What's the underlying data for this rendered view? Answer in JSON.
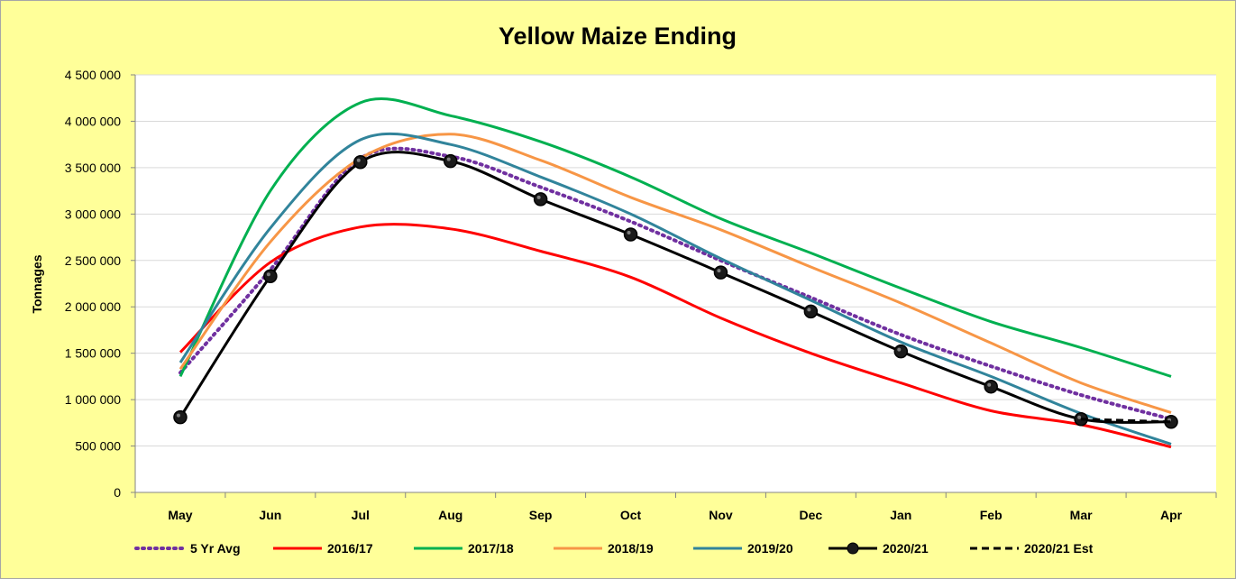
{
  "chart_data": {
    "type": "line",
    "title": "Yellow Maize Ending",
    "xlabel": "",
    "ylabel": "Tonnages",
    "ylim": [
      0,
      4500000
    ],
    "yticks": [
      0,
      500000,
      1000000,
      1500000,
      2000000,
      2500000,
      3000000,
      3500000,
      4000000,
      4500000
    ],
    "ytick_labels": [
      "0",
      "500 000",
      "1 000 000",
      "1 500 000",
      "2 000 000",
      "2 500 000",
      "3 000 000",
      "3 500 000",
      "4 000 000",
      "4 500 000"
    ],
    "categories": [
      "May",
      "Jun",
      "Jul",
      "Aug",
      "Sep",
      "Oct",
      "Nov",
      "Dec",
      "Jan",
      "Feb",
      "Mar",
      "Apr"
    ],
    "grid": "horizontal",
    "legend_position": "bottom",
    "background": "#ffff99",
    "plot_background": "#ffffff",
    "series": [
      {
        "name": "5 Yr Avg",
        "color": "#7030a0",
        "dash": "dotted",
        "markers": false,
        "values": [
          1290000,
          2400000,
          3600000,
          3620000,
          3290000,
          2920000,
          2500000,
          2100000,
          1700000,
          1360000,
          1050000,
          790000
        ]
      },
      {
        "name": "2016/17",
        "color": "#ff0000",
        "dash": "solid",
        "markers": false,
        "values": [
          1510000,
          2480000,
          2860000,
          2840000,
          2600000,
          2320000,
          1880000,
          1500000,
          1180000,
          880000,
          730000,
          490000
        ]
      },
      {
        "name": "2017/18",
        "color": "#00b050",
        "dash": "solid",
        "markers": false,
        "values": [
          1250000,
          3250000,
          4200000,
          4060000,
          3780000,
          3400000,
          2950000,
          2580000,
          2200000,
          1840000,
          1560000,
          1250000
        ]
      },
      {
        "name": "2018/19",
        "color": "#f79646",
        "dash": "solid",
        "markers": false,
        "values": [
          1330000,
          2700000,
          3600000,
          3860000,
          3580000,
          3180000,
          2830000,
          2430000,
          2040000,
          1610000,
          1180000,
          860000
        ]
      },
      {
        "name": "2019/20",
        "color": "#31849b",
        "dash": "solid",
        "markers": false,
        "values": [
          1400000,
          2850000,
          3800000,
          3750000,
          3400000,
          3000000,
          2520000,
          2070000,
          1620000,
          1250000,
          850000,
          520000
        ]
      },
      {
        "name": "2020/21",
        "color": "#000000",
        "dash": "solid",
        "markers": true,
        "values": [
          810000,
          2330000,
          3560000,
          3570000,
          3160000,
          2780000,
          2370000,
          1950000,
          1520000,
          1140000,
          790000,
          760000
        ]
      },
      {
        "name": "2020/21 Est",
        "color": "#000000",
        "dash": "dashed",
        "markers": false,
        "values": [
          null,
          null,
          null,
          null,
          null,
          null,
          null,
          null,
          null,
          null,
          790000,
          760000
        ]
      }
    ]
  }
}
